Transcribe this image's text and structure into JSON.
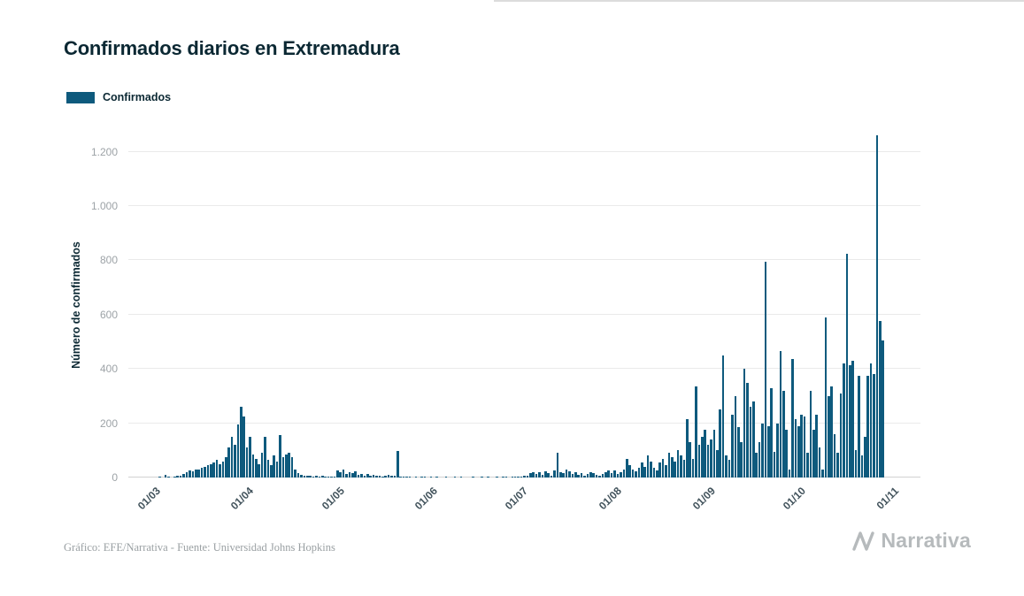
{
  "page": {
    "title": "Confirmados diarios en Extremadura",
    "footer": "Gráfico: EFE/Narrativa - Fuente: Universidad Johns Hopkins",
    "brand": "Narrativa"
  },
  "legend": {
    "label": "Confirmados",
    "color": "#0e5a7d"
  },
  "chart_data": {
    "type": "bar",
    "title": "Confirmados diarios en Extremadura",
    "xlabel": "",
    "ylabel": "Número de confirmados",
    "grid": true,
    "legend_position": "top-left",
    "ylim": [
      0,
      1270
    ],
    "yticks": [
      {
        "value": 0,
        "label": "0"
      },
      {
        "value": 200,
        "label": "200"
      },
      {
        "value": 400,
        "label": "400"
      },
      {
        "value": 600,
        "label": "600"
      },
      {
        "value": 800,
        "label": "800"
      },
      {
        "value": 1000,
        "label": "1.000"
      },
      {
        "value": 1200,
        "label": "1.200"
      }
    ],
    "xticks": [
      {
        "label": "01/03",
        "index": 8
      },
      {
        "label": "01/04",
        "index": 39
      },
      {
        "label": "01/05",
        "index": 69
      },
      {
        "label": "01/06",
        "index": 100
      },
      {
        "label": "01/07",
        "index": 130
      },
      {
        "label": "01/08",
        "index": 161
      },
      {
        "label": "01/09",
        "index": 192
      },
      {
        "label": "01/10",
        "index": 222
      },
      {
        "label": "01/11",
        "index": 253
      }
    ],
    "series": [
      {
        "name": "Confirmados",
        "color": "#0e5a7d",
        "values": [
          0,
          0,
          0,
          0,
          0,
          0,
          0,
          0,
          0,
          0,
          2,
          0,
          10,
          3,
          0,
          2,
          5,
          8,
          12,
          20,
          25,
          22,
          28,
          30,
          35,
          40,
          45,
          50,
          55,
          65,
          48,
          60,
          75,
          110,
          150,
          120,
          195,
          260,
          225,
          110,
          150,
          85,
          70,
          50,
          90,
          150,
          65,
          45,
          80,
          60,
          155,
          75,
          85,
          90,
          75,
          30,
          15,
          10,
          8,
          5,
          6,
          4,
          8,
          3,
          5,
          2,
          4,
          2,
          3,
          25,
          18,
          28,
          12,
          20,
          15,
          22,
          10,
          14,
          8,
          12,
          6,
          10,
          8,
          5,
          3,
          8,
          10,
          6,
          5,
          98,
          3,
          2,
          1,
          2,
          0,
          1,
          0,
          2,
          1,
          0,
          2,
          0,
          1,
          0,
          0,
          1,
          0,
          0,
          2,
          0,
          1,
          0,
          0,
          0,
          1,
          0,
          0,
          2,
          0,
          1,
          0,
          0,
          1,
          0,
          2,
          1,
          0,
          3,
          2,
          4,
          3,
          5,
          8,
          15,
          20,
          12,
          18,
          10,
          22,
          15,
          8,
          25,
          90,
          20,
          15,
          28,
          22,
          12,
          18,
          10,
          15,
          8,
          12,
          20,
          15,
          10,
          6,
          12,
          18,
          25,
          15,
          25,
          12,
          18,
          28,
          70,
          45,
          30,
          22,
          35,
          55,
          40,
          80,
          60,
          35,
          25,
          55,
          70,
          45,
          90,
          75,
          60,
          100,
          80,
          65,
          215,
          130,
          70,
          335,
          120,
          150,
          175,
          120,
          140,
          175,
          100,
          250,
          450,
          80,
          65,
          230,
          300,
          185,
          130,
          400,
          350,
          260,
          280,
          90,
          130,
          200,
          795,
          190,
          330,
          95,
          200,
          465,
          320,
          175,
          30,
          435,
          215,
          190,
          230,
          225,
          90,
          320,
          175,
          230,
          110,
          30,
          590,
          300,
          335,
          160,
          90,
          310,
          420,
          825,
          415,
          430,
          100,
          375,
          80,
          150,
          375,
          420,
          380,
          1260,
          575,
          505,
          0,
          0,
          0
        ]
      }
    ]
  }
}
